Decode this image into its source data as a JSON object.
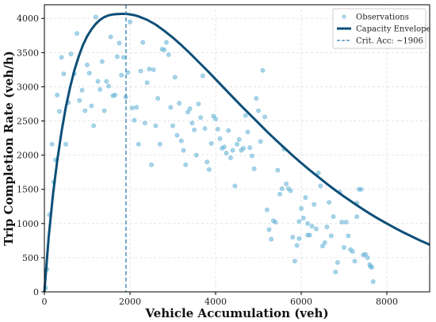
{
  "chart_data": {
    "type": "scatter",
    "xlabel": "Vehicle Accumulation (veh)",
    "ylabel": "Trip Completion Rate (veh/h)",
    "xlim": [
      0,
      9000
    ],
    "ylim": [
      0,
      4200
    ],
    "xticks": [
      0,
      2000,
      4000,
      6000,
      8000
    ],
    "yticks": [
      0,
      500,
      1000,
      1500,
      2000,
      2500,
      3000,
      3500,
      4000
    ],
    "grid": true,
    "legend_position": "top-right",
    "colors": {
      "observations": "#5fb1d6",
      "envelope": "#0d4f78",
      "critical": "#2e7fb0"
    },
    "legend": [
      {
        "key": "observations",
        "label": "Observations"
      },
      {
        "key": "envelope",
        "label": "Capacity Envelope"
      },
      {
        "key": "critical",
        "label": "Crit. Acc: ~1906"
      }
    ],
    "critical_accumulation": 1906,
    "envelope": {
      "x": [
        0,
        100,
        200,
        300,
        400,
        500,
        600,
        700,
        800,
        900,
        1000,
        1100,
        1200,
        1300,
        1400,
        1500,
        1600,
        1700,
        1800,
        1906,
        2000,
        2100,
        2200,
        2400,
        2600,
        2800,
        3000,
        3200,
        3400,
        3600,
        3800,
        4000,
        4200,
        4400,
        4600,
        4800,
        5000,
        5200,
        5400,
        5600,
        5800,
        6000,
        6200,
        6400,
        6600,
        6800,
        7000,
        7200,
        7400,
        7600,
        7800,
        8000,
        8200,
        8400,
        8600,
        8800,
        9000
      ],
      "y": [
        0,
        800,
        1420,
        1920,
        2340,
        2700,
        2990,
        3240,
        3440,
        3610,
        3740,
        3840,
        3920,
        3980,
        4020,
        4045,
        4058,
        4064,
        4066,
        4066,
        4060,
        4048,
        4030,
        3980,
        3910,
        3820,
        3720,
        3610,
        3490,
        3365,
        3240,
        3110,
        2980,
        2850,
        2720,
        2595,
        2470,
        2345,
        2225,
        2110,
        1995,
        1885,
        1780,
        1680,
        1580,
        1485,
        1395,
        1310,
        1225,
        1145,
        1070,
        1000,
        930,
        865,
        805,
        745,
        690
      ]
    },
    "observations": [
      [
        30,
        60
      ],
      [
        60,
        330
      ],
      [
        120,
        1130
      ],
      [
        180,
        2160
      ],
      [
        220,
        1610
      ],
      [
        260,
        1930
      ],
      [
        300,
        2880
      ],
      [
        350,
        2640
      ],
      [
        400,
        3430
      ],
      [
        450,
        3190
      ],
      [
        500,
        2160
      ],
      [
        560,
        2770
      ],
      [
        620,
        3480
      ],
      [
        700,
        3190
      ],
      [
        760,
        3780
      ],
      [
        820,
        2800
      ],
      [
        880,
        2950
      ],
      [
        950,
        2650
      ],
      [
        1000,
        3320
      ],
      [
        1050,
        3200
      ],
      [
        1100,
        2720
      ],
      [
        1150,
        2430
      ],
      [
        1200,
        4020
      ],
      [
        1250,
        3080
      ],
      [
        1300,
        2960
      ],
      [
        1350,
        3370
      ],
      [
        1400,
        2650
      ],
      [
        1450,
        3080
      ],
      [
        1500,
        3010
      ],
      [
        1550,
        3730
      ],
      [
        1600,
        2870
      ],
      [
        1650,
        2880
      ],
      [
        1700,
        3440
      ],
      [
        1750,
        3640
      ],
      [
        1800,
        3170
      ],
      [
        1850,
        3430
      ],
      [
        1900,
        2850
      ],
      [
        1950,
        3210
      ],
      [
        2000,
        3950
      ],
      [
        2050,
        2690
      ],
      [
        2100,
        2510
      ],
      [
        2150,
        2700
      ],
      [
        2200,
        2160
      ],
      [
        2250,
        3230
      ],
      [
        2300,
        3650
      ],
      [
        2350,
        2470
      ],
      [
        2400,
        3060
      ],
      [
        2450,
        3260
      ],
      [
        2500,
        1860
      ],
      [
        2550,
        3250
      ],
      [
        2600,
        2430
      ],
      [
        2650,
        2830
      ],
      [
        2700,
        2160
      ],
      [
        2750,
        3550
      ],
      [
        2800,
        3540
      ],
      [
        2850,
        3650
      ],
      [
        2900,
        3470
      ],
      [
        2950,
        2700
      ],
      [
        3000,
        2430
      ],
      [
        3050,
        3140
      ],
      [
        3100,
        2290
      ],
      [
        3150,
        2760
      ],
      [
        3200,
        2210
      ],
      [
        3250,
        2070
      ],
      [
        3300,
        1860
      ],
      [
        3350,
        2630
      ],
      [
        3400,
        2680
      ],
      [
        3450,
        2470
      ],
      [
        3500,
        2370
      ],
      [
        3550,
        2000
      ],
      [
        3600,
        2750
      ],
      [
        3650,
        2550
      ],
      [
        3700,
        3160
      ],
      [
        3750,
        2390
      ],
      [
        3800,
        1900
      ],
      [
        3850,
        1790
      ],
      [
        3900,
        2170
      ],
      [
        3950,
        2570
      ],
      [
        4000,
        2530
      ],
      [
        4050,
        2380
      ],
      [
        4100,
        2240
      ],
      [
        4150,
        2100
      ],
      [
        4200,
        2120
      ],
      [
        4250,
        2030
      ],
      [
        4300,
        2360
      ],
      [
        4350,
        1960
      ],
      [
        4400,
        2070
      ],
      [
        4450,
        1550
      ],
      [
        4500,
        2160
      ],
      [
        4550,
        2230
      ],
      [
        4600,
        2070
      ],
      [
        4650,
        2100
      ],
      [
        4700,
        2580
      ],
      [
        4750,
        2340
      ],
      [
        4800,
        2110
      ],
      [
        4850,
        1990
      ],
      [
        4900,
        1800
      ],
      [
        4950,
        2830
      ],
      [
        5000,
        2650
      ],
      [
        5050,
        2200
      ],
      [
        5100,
        3240
      ],
      [
        5150,
        2560
      ],
      [
        5200,
        1200
      ],
      [
        5250,
        910
      ],
      [
        5300,
        770
      ],
      [
        5350,
        1040
      ],
      [
        5400,
        1020
      ],
      [
        5450,
        1780
      ],
      [
        5500,
        1430
      ],
      [
        5550,
        1510
      ],
      [
        5600,
        2090
      ],
      [
        5650,
        1580
      ],
      [
        5700,
        1510
      ],
      [
        5750,
        1480
      ],
      [
        5800,
        800
      ],
      [
        5850,
        450
      ],
      [
        5900,
        680
      ],
      [
        5950,
        1030
      ],
      [
        6000,
        1220
      ],
      [
        6050,
        1080
      ],
      [
        6100,
        1380
      ],
      [
        6150,
        1000
      ],
      [
        6200,
        830
      ],
      [
        6250,
        960
      ],
      [
        6300,
        1280
      ],
      [
        6350,
        920
      ],
      [
        6400,
        1740
      ],
      [
        6450,
        1550
      ],
      [
        6500,
        670
      ],
      [
        6550,
        720
      ],
      [
        6600,
        950
      ],
      [
        6650,
        1310
      ],
      [
        6700,
        820
      ],
      [
        6750,
        1100
      ],
      [
        6800,
        290
      ],
      [
        6850,
        430
      ],
      [
        6900,
        1460
      ],
      [
        6950,
        1020
      ],
      [
        7000,
        650
      ],
      [
        7050,
        1020
      ],
      [
        7100,
        820
      ],
      [
        7150,
        620
      ],
      [
        7200,
        590
      ],
      [
        7250,
        450
      ],
      [
        7300,
        1300
      ],
      [
        7350,
        1500
      ],
      [
        7400,
        1500
      ],
      [
        7450,
        540
      ],
      [
        7500,
        550
      ],
      [
        7550,
        500
      ],
      [
        7600,
        400
      ],
      [
        7620,
        370
      ],
      [
        7650,
        360
      ],
      [
        7680,
        150
      ],
      [
        5950,
        780
      ],
      [
        6150,
        830
      ],
      [
        7300,
        1100
      ]
    ]
  }
}
